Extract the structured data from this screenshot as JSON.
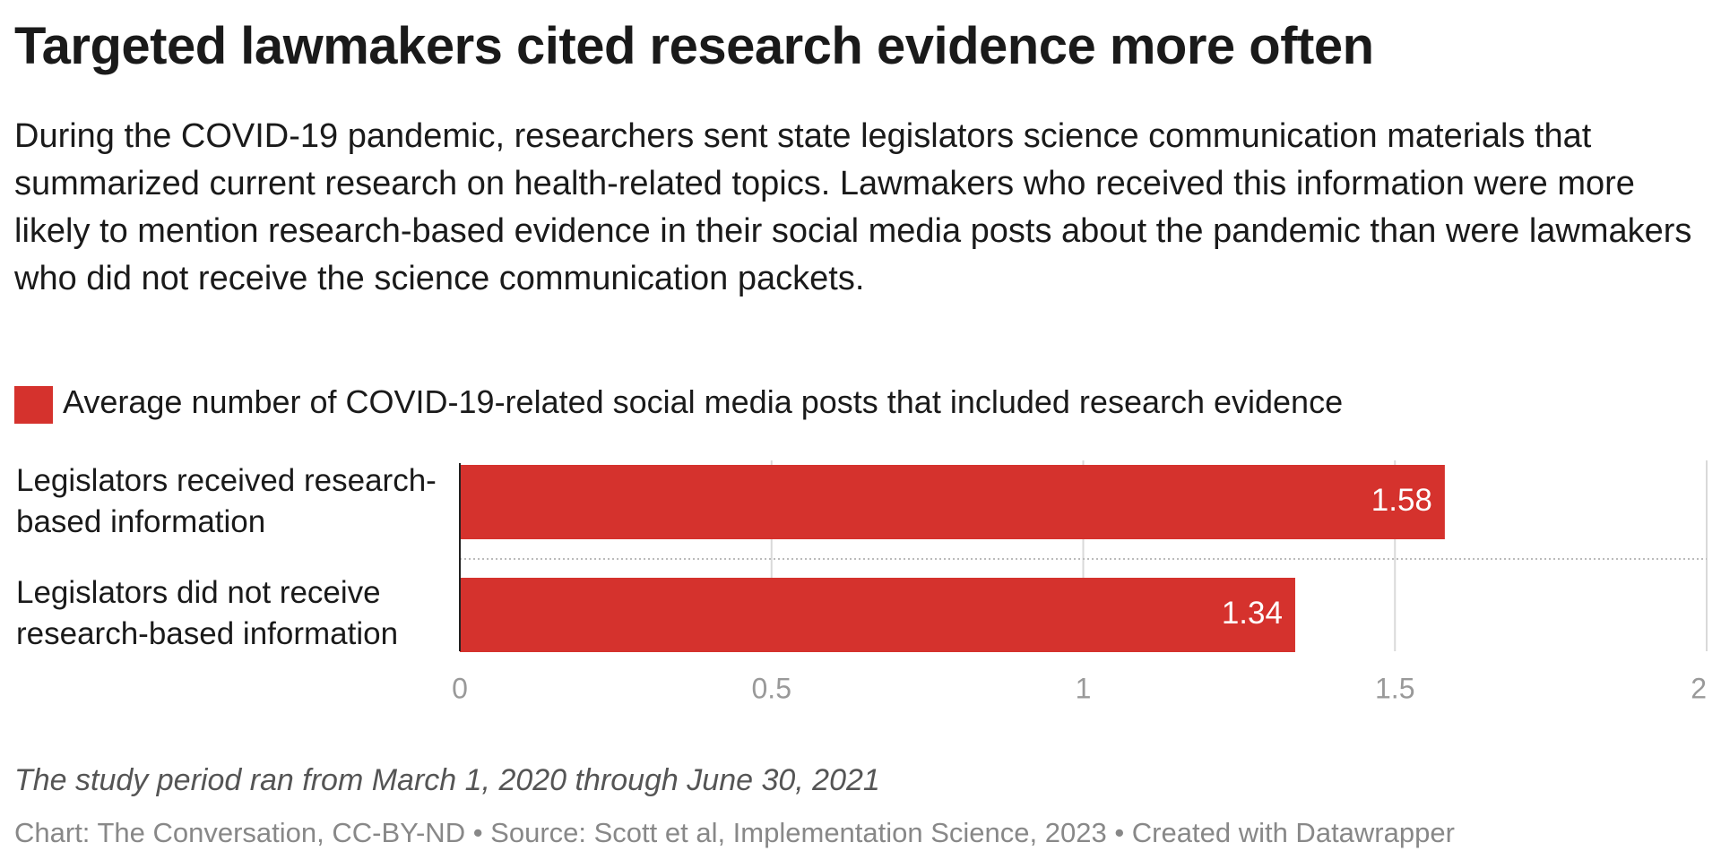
{
  "chart_data": {
    "type": "bar",
    "orientation": "horizontal",
    "title": "Targeted lawmakers cited research evidence more often",
    "subtitle": "During the COVID-19 pandemic, researchers sent state legislators science communication materials that summarized current research on health-related topics. Lawmakers who received this information were more likely to mention research-based evidence in their social media posts about the pandemic than were lawmakers who did not receive the science communication packets.",
    "categories": [
      "Legislators received research-based information",
      "Legislators did not receive research-based information"
    ],
    "series": [
      {
        "name": "Average number of COVID-19-related social media posts that included research evidence",
        "color": "#d5322d",
        "values": [
          1.58,
          1.34
        ]
      }
    ],
    "xlim": [
      0,
      2
    ],
    "xticks": [
      0,
      0.5,
      1,
      1.5,
      2
    ],
    "grid": true,
    "note": "The study period ran from March 1, 2020 through June 30, 2021",
    "footer": "Chart: The Conversation, CC-BY-ND • Source: Scott et al, Implementation Science, 2023 • Created with Datawrapper"
  }
}
